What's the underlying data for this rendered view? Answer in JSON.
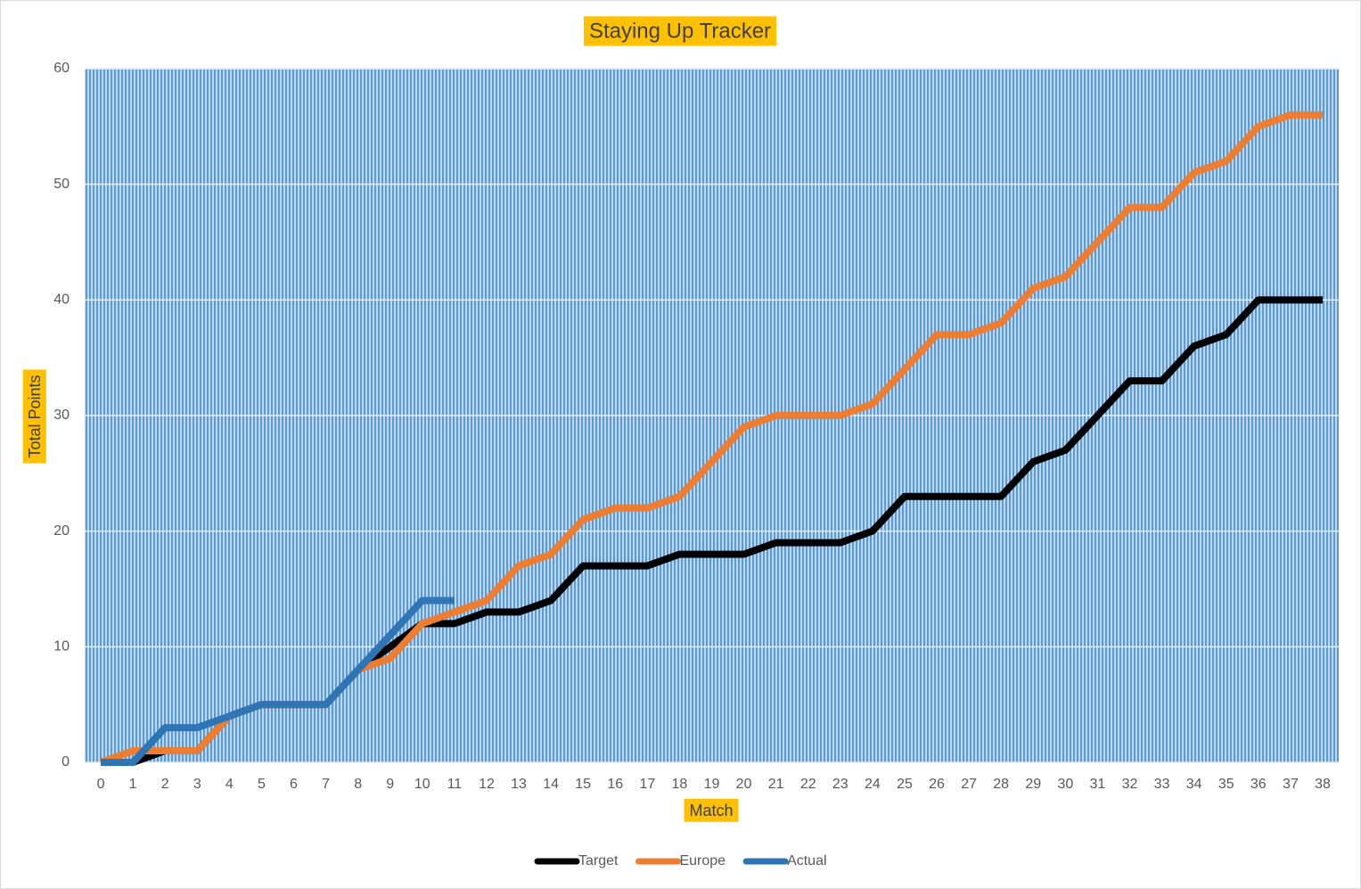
{
  "chart_data": {
    "type": "line",
    "title": "Staying Up Tracker",
    "x_label": "Match",
    "y_label": "Total Points",
    "categories": [
      0,
      1,
      2,
      3,
      4,
      5,
      6,
      7,
      8,
      9,
      10,
      11,
      12,
      13,
      14,
      15,
      16,
      17,
      18,
      19,
      20,
      21,
      22,
      23,
      24,
      25,
      26,
      27,
      28,
      29,
      30,
      31,
      32,
      33,
      34,
      35,
      36,
      37,
      38
    ],
    "series": [
      {
        "name": "Target",
        "color": "#000000",
        "values": [
          0,
          0,
          1,
          1,
          4,
          5,
          5,
          5,
          8,
          10,
          12,
          12,
          13,
          13,
          14,
          17,
          17,
          17,
          18,
          18,
          18,
          19,
          19,
          19,
          20,
          23,
          23,
          23,
          23,
          26,
          27,
          30,
          33,
          33,
          36,
          37,
          40,
          40,
          40
        ]
      },
      {
        "name": "Europe",
        "color": "#ed7d31",
        "values": [
          0,
          1,
          1,
          1,
          4,
          5,
          5,
          5,
          8,
          9,
          12,
          13,
          14,
          17,
          18,
          21,
          22,
          22,
          23,
          26,
          29,
          30,
          30,
          30,
          31,
          34,
          37,
          37,
          38,
          41,
          42,
          45,
          48,
          48,
          51,
          52,
          55,
          56,
          56
        ]
      },
      {
        "name": "Actual",
        "color": "#2e75b6",
        "values": [
          0,
          0,
          3,
          3,
          4,
          5,
          5,
          5,
          8,
          11,
          14,
          14,
          null,
          null,
          null,
          null,
          null,
          null,
          null,
          null,
          null,
          null,
          null,
          null,
          null,
          null,
          null,
          null,
          null,
          null,
          null,
          null,
          null,
          null,
          null,
          null,
          null,
          null,
          null
        ]
      }
    ],
    "ylim": [
      0,
      60
    ],
    "yticks": [
      0,
      10,
      20,
      30,
      40,
      50,
      60
    ],
    "grid": true,
    "legend": "bottom"
  }
}
